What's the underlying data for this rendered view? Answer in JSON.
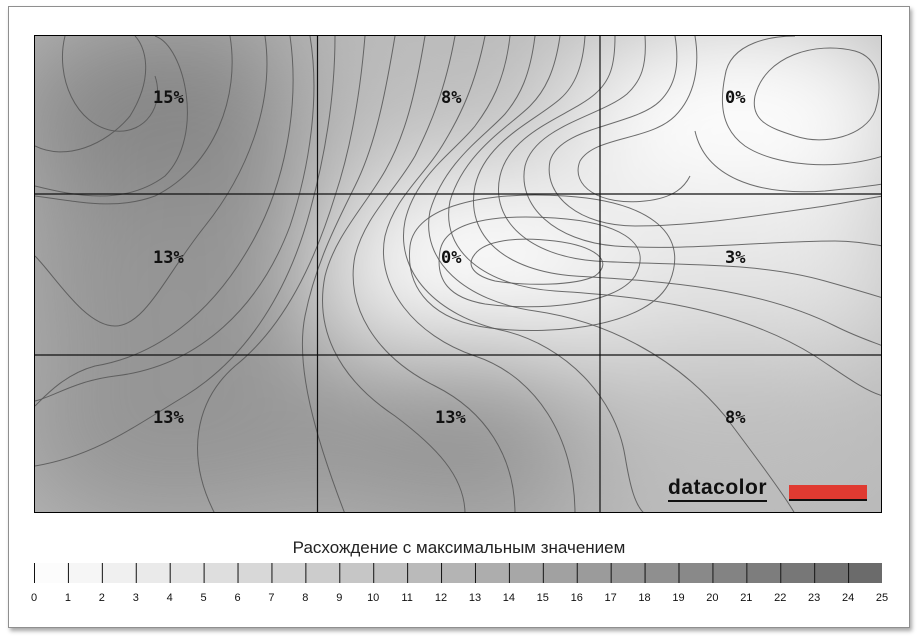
{
  "chart_data": {
    "type": "heatmap",
    "grid": {
      "rows": 3,
      "cols": 3
    },
    "cells": [
      [
        "15%",
        "8%",
        "0%"
      ],
      [
        "13%",
        "0%",
        "3%"
      ],
      [
        "13%",
        "13%",
        "8%"
      ]
    ],
    "values": [
      [
        15,
        8,
        0
      ],
      [
        13,
        0,
        3
      ],
      [
        13,
        13,
        8
      ]
    ],
    "legend_title": "Расхождение с максимальным значением",
    "scale_min": 0,
    "scale_max": 25,
    "scale_ticks": [
      "0",
      "1",
      "2",
      "3",
      "4",
      "5",
      "6",
      "7",
      "8",
      "9",
      "10",
      "11",
      "12",
      "13",
      "14",
      "15",
      "16",
      "17",
      "18",
      "19",
      "20",
      "21",
      "22",
      "23",
      "24",
      "25"
    ],
    "colormap": "grayscale (white = 0, dark gray = 25)"
  },
  "logo": {
    "text": "datacolor",
    "accent_color": "#e03a31"
  }
}
